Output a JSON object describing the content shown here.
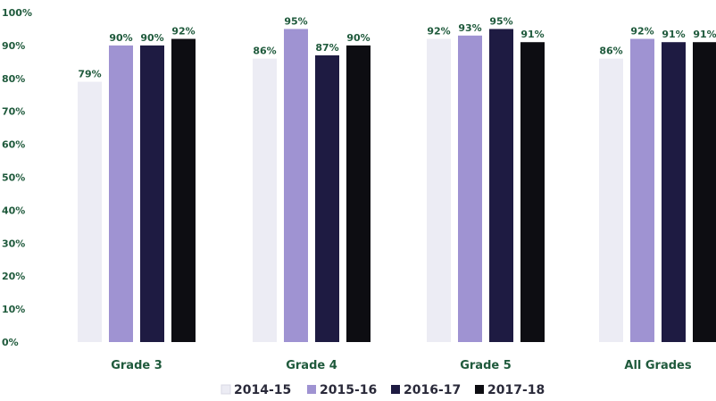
{
  "chart_data": {
    "type": "bar",
    "title": "",
    "xlabel": "",
    "ylabel": "",
    "ylim": [
      0,
      100
    ],
    "y_ticks": [
      "0%",
      "10%",
      "20%",
      "30%",
      "40%",
      "50%",
      "60%",
      "70%",
      "80%",
      "90%",
      "100%"
    ],
    "y_tick_values": [
      0,
      10,
      20,
      30,
      40,
      50,
      60,
      70,
      80,
      90,
      100
    ],
    "value_suffix": "%",
    "categories": [
      "Grade 3",
      "Grade 4",
      "Grade 5",
      "All Grades"
    ],
    "series": [
      {
        "name": "2014-15",
        "color": "#ececf4",
        "values": [
          79,
          86,
          92,
          86
        ]
      },
      {
        "name": "2015-16",
        "color": "#9f93d2",
        "values": [
          90,
          95,
          93,
          92
        ]
      },
      {
        "name": "2016-17",
        "color": "#1e1b42",
        "values": [
          90,
          87,
          95,
          91
        ]
      },
      {
        "name": "2017-18",
        "color": "#0d0d12",
        "values": [
          92,
          90,
          91,
          91
        ]
      }
    ],
    "grid": false,
    "legend_position": "bottom"
  }
}
